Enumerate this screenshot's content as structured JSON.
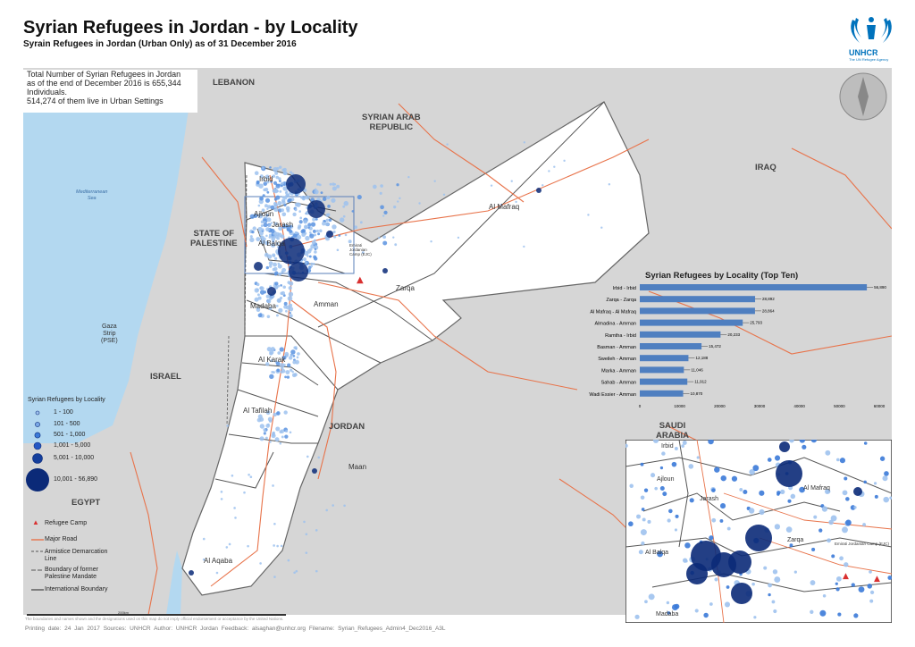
{
  "header": {
    "title": "Syrian Refugees in Jordan - by Locality",
    "subtitle": "Syrain Refugees in Jordan (Urban Only) as of 31 December 2016"
  },
  "logo": {
    "name": "UNHCR",
    "tagline": "The UN Refugee Agency"
  },
  "info": {
    "line1": "Total Number of Syrian Refugees in Jordan",
    "line2": "as of the end of December 2016 is 655,344",
    "line3": "Individuals.",
    "line4": "514,274 of them live in Urban Settings"
  },
  "countries": {
    "lebanon": "LEBANON",
    "syria": "SYRIAN ARAB\nREPUBLIC",
    "iraq": "IRAQ",
    "palestine": "STATE OF\nPALESTINE",
    "israel": "ISRAEL",
    "jordan": "JORDAN",
    "egypt": "EGYPT",
    "saudi": "SAUDI\nARABIA"
  },
  "places": {
    "irbid": "Irbid",
    "ajloun": "Ajloun",
    "jarash": "Jarash",
    "albalqa": "Al Balqa",
    "mafraq": "Al Mafraq",
    "zarqa": "Zarqa",
    "madaba": "Madaba",
    "amman": "Amman",
    "karak": "Al Karak",
    "tafilah": "Al Tafilah",
    "maan": "Maan",
    "aqaba": "Al Aqaba",
    "gaza": "Gaza\nStrip\n(PSE)",
    "sea": "Mediterranean\nSea",
    "camp": "Emirati\nJordanian\nCamp (EJC)",
    "inset_camp": "Emirati Jordanian Camp (EJC)",
    "inset_irbid": "Irbid",
    "inset_ajloun": "Ajloun",
    "inset_jarash": "Jarash",
    "inset_albalqa": "Al Balqa",
    "inset_zarqa": "Zarqa",
    "inset_mafraq": "Al Mafraq",
    "inset_madaba": "Madaba"
  },
  "legend": {
    "title": "Syrian Refugees by Locality",
    "classes": [
      "1 - 100",
      "101 - 500",
      "501 - 1,000",
      "1,001 - 5,000",
      "5,001 - 10,000",
      "10,001 - 56,890"
    ],
    "camp": "Refugee Camp",
    "road": "Major Road",
    "armistice": "Armistice Demarcation\nLine",
    "mandate": "Boundary of former\nPalestine Mandate",
    "intl": "International Boundary"
  },
  "scale": {
    "label": "200km"
  },
  "chart_data": {
    "type": "bar",
    "orientation": "horizontal",
    "title": "Syrian Refugees by Locality (Top Ten)",
    "categories": [
      "Irbid - Irbid",
      "Zarqa - Zarqa",
      "Al Mafraq - Al Mafraq",
      "Almadina - Amman",
      "Ramtha - Irbid",
      "Basman - Amman",
      "Sweileh - Amman",
      "Marka - Amman",
      "Sahab - Amman",
      "Wadi Essier - Amman"
    ],
    "values": [
      56890,
      28892,
      28864,
      25793,
      20233,
      15472,
      12188,
      11046,
      11912,
      10870
    ],
    "value_labels": [
      "56,890",
      "28,892",
      "28,864",
      "25,793",
      "20,233",
      "15,472",
      "12,188",
      "11,046",
      "11,912",
      "10,870"
    ],
    "ticks": [
      "0",
      "10000",
      "20000",
      "30000",
      "40000",
      "50000",
      "60000"
    ],
    "xlim": [
      0,
      60000
    ],
    "color": "#4f7fc0"
  },
  "footer": {
    "text": "Printing date: 24 Jan 2017    Sources: UNHCR    Author: UNHCR Jordan    Feedback: alsaghan@unhcr.org    Filename: Syrian_Refugees_Admin4_Dec2016_A3L",
    "disclaimer": "The boundaries and names shown and the designations used on this map do not imply official endorsement or acceptance by the United Nations."
  },
  "colors": {
    "water": "#b3d8f0",
    "neighbor": "#d6d6d6",
    "jordan": "#ffffff",
    "road": "#e8734a",
    "dot_light": "#9ec2ee",
    "dot_mid": "#3b7ad8",
    "dot_dark": "#0b2a78"
  }
}
